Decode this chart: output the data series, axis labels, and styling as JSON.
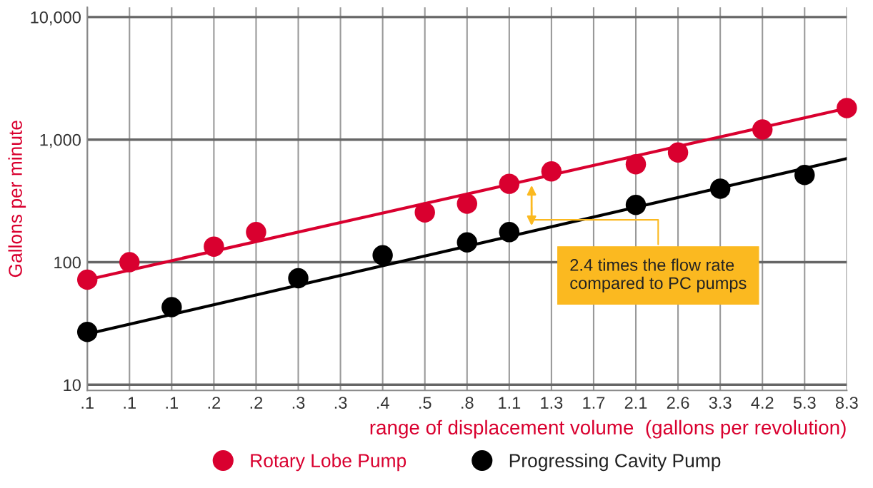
{
  "chart_data": {
    "type": "scatter",
    "xlabel": "range of displacement volume  (gallons per revolution)",
    "ylabel": "Gallons per minute",
    "categories": [
      ".1",
      ".1",
      ".1",
      ".2",
      ".2",
      ".3",
      ".3",
      ".4",
      ".5",
      ".8",
      "1.1",
      "1.3",
      "1.7",
      "2.1",
      "2.6",
      "3.3",
      "4.2",
      "5.3",
      "8.3"
    ],
    "series": [
      {
        "name": "Rotary Lobe Pump",
        "color": "#d9002f",
        "values": [
          72,
          100,
          null,
          134,
          176,
          null,
          null,
          null,
          255,
          300,
          436,
          550,
          null,
          630,
          785,
          null,
          1210,
          null,
          1810
        ]
      },
      {
        "name": "Progressing Cavity Pump",
        "color": "#000000",
        "values": [
          27,
          null,
          43,
          null,
          null,
          74,
          null,
          114,
          null,
          145,
          176,
          null,
          null,
          293,
          null,
          398,
          null,
          515,
          null
        ]
      },
      {
        "type": "line",
        "marker": "none",
        "color": "#d9002f",
        "values": [
          72,
          null,
          null,
          null,
          null,
          null,
          null,
          null,
          null,
          null,
          null,
          null,
          null,
          null,
          null,
          null,
          null,
          null,
          1800
        ]
      },
      {
        "type": "line",
        "marker": "none",
        "color": "#000000",
        "values": [
          26,
          null,
          null,
          null,
          null,
          null,
          null,
          null,
          null,
          null,
          null,
          null,
          null,
          null,
          null,
          null,
          null,
          null,
          700
        ]
      }
    ],
    "log": "y",
    "ylim": [
      9,
      12000
    ],
    "yticks": [
      10,
      100,
      {
        "value": 1000,
        "label": "1,000"
      },
      {
        "value": 10000,
        "label": "10,000"
      }
    ],
    "grid": true,
    "legend": "bottom",
    "marker": "circle",
    "annotations": [
      "2.4 times the flow rate\ncompared to PC pumps"
    ]
  }
}
